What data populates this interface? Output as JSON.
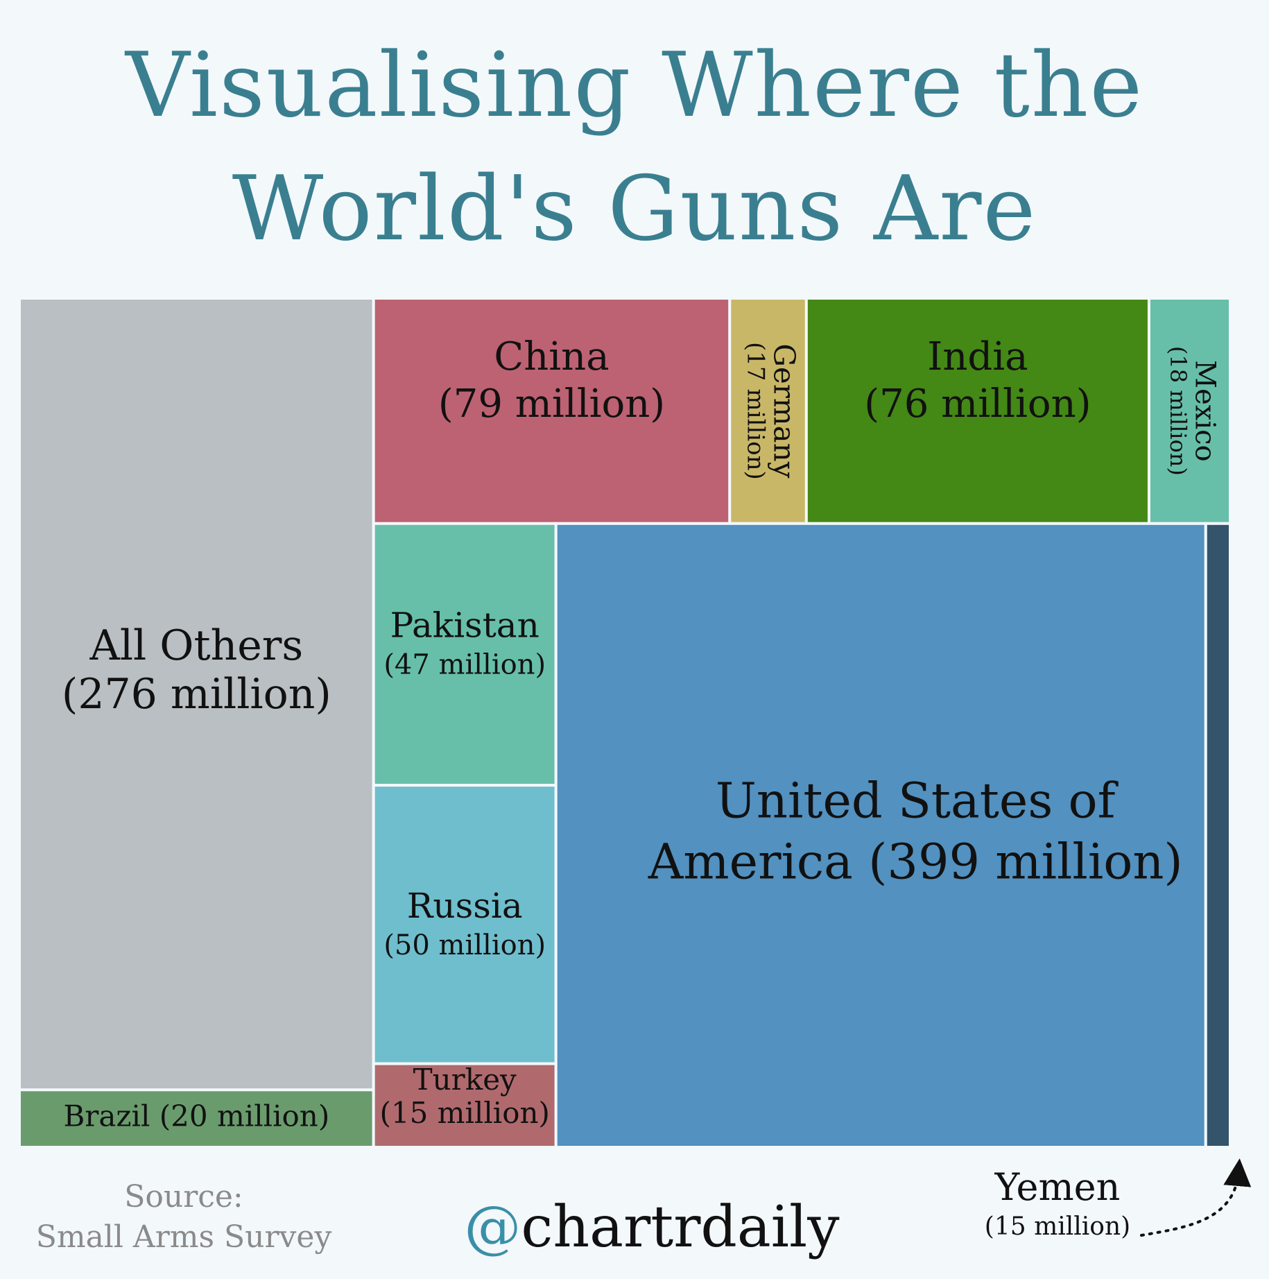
{
  "title": {
    "line1": "Visualising Where the",
    "line2": "World's Guns Are"
  },
  "chart_data": {
    "type": "treemap",
    "unit": "million",
    "items": [
      {
        "name": "All Others",
        "label": "All Others",
        "value_label": "(276 million)",
        "value": 276,
        "color": "#b9bfc2"
      },
      {
        "name": "Brazil",
        "label": "Brazil (20 million)",
        "value": 20,
        "color": "#6a9b6d"
      },
      {
        "name": "China",
        "label": "China",
        "value_label": "(79 million)",
        "value": 79,
        "color": "#bd6272"
      },
      {
        "name": "Germany",
        "label": "Germany",
        "value_label": "(17 million)",
        "value": 17,
        "color": "#c9b768"
      },
      {
        "name": "India",
        "label": "India",
        "value_label": "(76 million)",
        "value": 76,
        "color": "#448816"
      },
      {
        "name": "Mexico",
        "label": "Mexico",
        "value_label": "(18 million)",
        "value": 18,
        "color": "#67bfa9"
      },
      {
        "name": "Pakistan",
        "label": "Pakistan",
        "value_label": "(47 million)",
        "value": 47,
        "color": "#67bfa9"
      },
      {
        "name": "Russia",
        "label": "Russia",
        "value_label": "(50 million)",
        "value": 50,
        "color": "#6fbecd"
      },
      {
        "name": "Turkey",
        "label": "Turkey",
        "value_label": "(15 million)",
        "value": 15,
        "color": "#b06a6e"
      },
      {
        "name": "United States of America",
        "label": "United States of",
        "value_label": "America (399 million)",
        "value": 399,
        "color": "#5291c0"
      },
      {
        "name": "Yemen",
        "label": "Yemen",
        "value_label": "(15 million)",
        "value": 15,
        "color": "#33546b"
      }
    ]
  },
  "footer": {
    "source_line1": "Source:",
    "source_line2": "Small Arms Survey",
    "handle_at": "@",
    "handle_name": "chartrdaily"
  }
}
